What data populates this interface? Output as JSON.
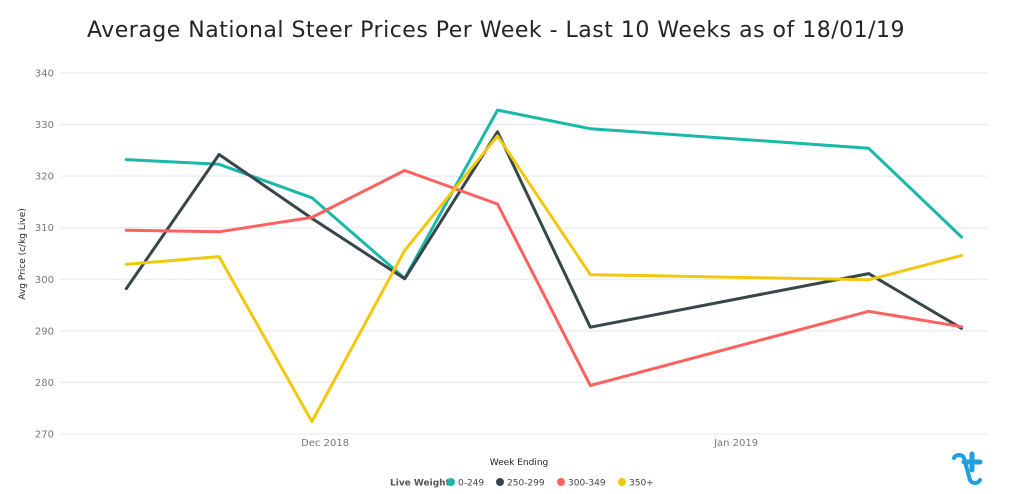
{
  "colors": {
    "0-249": "#1ab8a8",
    "250-299": "#374649",
    "300-349": "#fd625e",
    "350+": "#f2c80f",
    "logo": "#1e9fe0"
  },
  "chart_data": {
    "type": "line",
    "title": "Average National Steer Prices Per Week - Last 10 Weeks as of 18/01/19",
    "xlabel": "Week Ending",
    "ylabel": "Avg Price (c/kg Live)",
    "ylim": [
      270,
      340
    ],
    "yticks": [
      270,
      280,
      290,
      300,
      310,
      320,
      330,
      340
    ],
    "xlim": [
      "2018-11-11",
      "2019-01-20"
    ],
    "xticks": [
      {
        "date": "2018-12-01",
        "label": "Dec 2018"
      },
      {
        "date": "2019-01-01",
        "label": "Jan 2019"
      }
    ],
    "x": [
      "2018-11-16",
      "2018-11-23",
      "2018-11-30",
      "2018-12-07",
      "2018-12-14",
      "2018-12-21",
      "2019-01-11",
      "2019-01-18"
    ],
    "grid": true,
    "legend_position": "bottom",
    "legend_title": "Live Weight",
    "series": [
      {
        "name": "0-249",
        "values": [
          323.2,
          322.3,
          315.8,
          300.2,
          332.8,
          329.2,
          325.4,
          308.2
        ]
      },
      {
        "name": "250-299",
        "values": [
          298.2,
          324.2,
          311.8,
          300.1,
          328.6,
          290.7,
          301.1,
          290.5
        ]
      },
      {
        "name": "300-349",
        "values": [
          309.5,
          309.2,
          312.0,
          321.1,
          314.6,
          279.4,
          293.8,
          290.8
        ]
      },
      {
        "name": "350+",
        "values": [
          302.9,
          304.4,
          272.4,
          305.6,
          327.8,
          300.9,
          299.9,
          304.6
        ]
      }
    ]
  }
}
